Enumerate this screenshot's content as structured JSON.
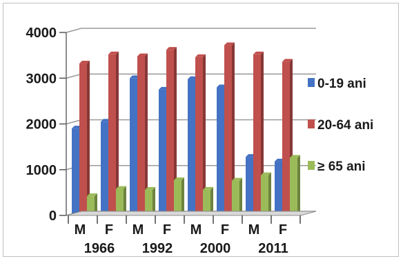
{
  "chart_data": {
    "type": "bar",
    "categories": [
      "M",
      "F",
      "M",
      "F",
      "M",
      "F",
      "M",
      "F"
    ],
    "groups": [
      "1966",
      "1992",
      "2000",
      "2011"
    ],
    "series": [
      {
        "name": "0-19 ani",
        "values": [
          1900,
          2050,
          3000,
          2750,
          2980,
          2800,
          1280,
          1180
        ],
        "color": "#4472c4"
      },
      {
        "name": "20-64 ani",
        "values": [
          3320,
          3520,
          3480,
          3620,
          3460,
          3720,
          3520,
          3360
        ],
        "color": "#c0504d"
      },
      {
        "name": "≥ 65 ani",
        "values": [
          420,
          580,
          560,
          770,
          560,
          760,
          880,
          1260
        ],
        "color": "#9bbb59"
      }
    ],
    "yticks": [
      "0",
      "1000",
      "2000",
      "3000",
      "4000"
    ],
    "ylim": [
      0,
      4000
    ],
    "grid": true,
    "legend": "right"
  }
}
